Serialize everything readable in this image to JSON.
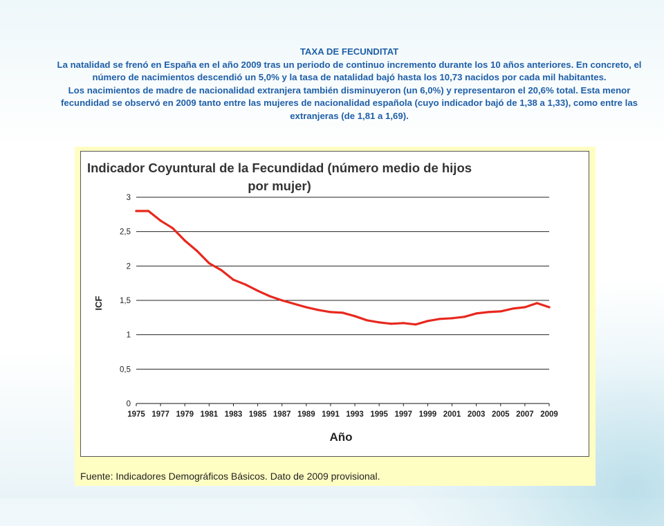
{
  "slide": {
    "heading": "TAXA DE FECUNDITAT",
    "paragraphs": [
      "La natalidad se frenó en España en el año 2009 tras un periodo de continuo incremento durante los 10 años anteriores. En concreto, el número de nacimientos descendió un 5,0% y la tasa de natalidad bajó hasta los 10,73 nacidos por cada mil habitantes.",
      "Los nacimientos de madre de nacionalidad extranjera también disminuyeron (un 6,0%) y representaron el 20,6% total. Esta menor fecundidad se observó en 2009 tanto entre las mujeres de nacionalidad española (cuyo indicador bajó de 1,38 a 1,33), como entre las extranjeras (de 1,81 a 1,69)."
    ],
    "text_color": "#1f5fa8"
  },
  "figure": {
    "source_note": "Fuente: Indicadores Demográficos Básicos. Dato de 2009 provisional.",
    "frame_color": "#fffec2"
  },
  "chart_data": {
    "type": "line",
    "title_lines": [
      "Indicador Coyuntural de la Fecundidad (número medio de hijos",
      "por mujer)"
    ],
    "xlabel": "Año",
    "ylabel": "ICF",
    "xlim": [
      1975,
      2009
    ],
    "ylim": [
      0,
      3
    ],
    "x_ticks": [
      "1975",
      "1977",
      "1979",
      "1981",
      "1983",
      "1985",
      "1987",
      "1989",
      "1991",
      "1993",
      "1995",
      "1997",
      "1999",
      "2001",
      "2003",
      "2005",
      "2007",
      "2009"
    ],
    "y_ticks": [
      {
        "value": 0,
        "label": "0"
      },
      {
        "value": 0.5,
        "label": "0,5"
      },
      {
        "value": 1,
        "label": "1"
      },
      {
        "value": 1.5,
        "label": "1,5"
      },
      {
        "value": 2,
        "label": "2"
      },
      {
        "value": 2.5,
        "label": "2,5"
      },
      {
        "value": 3,
        "label": "3"
      }
    ],
    "grid": "horizontal",
    "series": [
      {
        "color": "#e8281e",
        "x": [
          1975,
          1976,
          1977,
          1978,
          1979,
          1980,
          1981,
          1982,
          1983,
          1984,
          1985,
          1986,
          1987,
          1988,
          1989,
          1990,
          1991,
          1992,
          1993,
          1994,
          1995,
          1996,
          1997,
          1998,
          1999,
          2000,
          2001,
          2002,
          2003,
          2004,
          2005,
          2006,
          2007,
          2008,
          2009
        ],
        "y": [
          2.8,
          2.8,
          2.66,
          2.55,
          2.37,
          2.22,
          2.04,
          1.94,
          1.8,
          1.73,
          1.64,
          1.56,
          1.5,
          1.45,
          1.4,
          1.36,
          1.33,
          1.32,
          1.27,
          1.21,
          1.18,
          1.16,
          1.17,
          1.15,
          1.2,
          1.23,
          1.24,
          1.26,
          1.31,
          1.33,
          1.34,
          1.38,
          1.4,
          1.46,
          1.4
        ]
      }
    ]
  }
}
